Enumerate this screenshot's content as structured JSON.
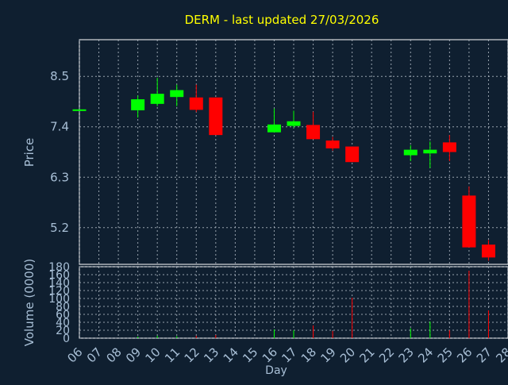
{
  "chart_data": {
    "type": "candlestick",
    "title": "DERM - last updated 27/03/2026",
    "colors": {
      "background": "#0f1f30",
      "plot_frame": "#ffffff",
      "grid": "#b8c2cc",
      "title": "#ffff00",
      "axis_text": "#a8bfd6",
      "up": "#00ff00",
      "down": "#ff0000"
    },
    "x_ticks": [
      "06",
      "07",
      "08",
      "09",
      "10",
      "11",
      "12",
      "13",
      "14",
      "15",
      "16",
      "17",
      "18",
      "19",
      "20",
      "21",
      "22",
      "23",
      "24",
      "25",
      "26",
      "27",
      "28"
    ],
    "xlabel": "Day",
    "price_panel": {
      "ylabel": "Price",
      "yticks": [
        8.5,
        7.4,
        6.3,
        5.2
      ],
      "ylim": [
        4.4,
        9.3
      ],
      "grid": true
    },
    "volume_panel": {
      "ylabel": "Volume (0000)",
      "yticks": [
        0,
        20,
        40,
        60,
        80,
        100,
        120,
        140,
        160,
        180
      ],
      "ylim": [
        0,
        180
      ],
      "grid": true
    },
    "candles": [
      {
        "day": "06",
        "open": 7.75,
        "close": 7.78,
        "high": 7.78,
        "low": 7.75,
        "volume": 0
      },
      {
        "day": "09",
        "open": 7.76,
        "close": 8.0,
        "high": 8.08,
        "low": 7.6,
        "volume": 4
      },
      {
        "day": "10",
        "open": 7.9,
        "close": 8.12,
        "high": 8.47,
        "low": 7.85,
        "volume": 6
      },
      {
        "day": "11",
        "open": 8.05,
        "close": 8.2,
        "high": 8.32,
        "low": 7.85,
        "volume": 5
      },
      {
        "day": "12",
        "open": 8.04,
        "close": 7.77,
        "high": 8.32,
        "low": 7.72,
        "volume": 6
      },
      {
        "day": "13",
        "open": 8.04,
        "close": 7.22,
        "high": 8.04,
        "low": 7.22,
        "volume": 8
      },
      {
        "day": "16",
        "open": 7.28,
        "close": 7.45,
        "high": 7.8,
        "low": 7.28,
        "volume": 22
      },
      {
        "day": "17",
        "open": 7.42,
        "close": 7.52,
        "high": 7.75,
        "low": 7.38,
        "volume": 20
      },
      {
        "day": "18",
        "open": 7.44,
        "close": 7.13,
        "high": 7.73,
        "low": 7.13,
        "volume": 32
      },
      {
        "day": "19",
        "open": 7.1,
        "close": 6.93,
        "high": 7.18,
        "low": 6.88,
        "volume": 18
      },
      {
        "day": "20",
        "open": 6.97,
        "close": 6.63,
        "high": 6.97,
        "low": 6.63,
        "volume": 102
      },
      {
        "day": "23",
        "open": 6.78,
        "close": 6.9,
        "high": 7.0,
        "low": 6.65,
        "volume": 25
      },
      {
        "day": "24",
        "open": 6.82,
        "close": 6.9,
        "high": 7.08,
        "low": 6.5,
        "volume": 42
      },
      {
        "day": "25",
        "open": 7.06,
        "close": 6.85,
        "high": 7.22,
        "low": 6.65,
        "volume": 20
      },
      {
        "day": "26",
        "open": 5.9,
        "close": 4.77,
        "high": 6.1,
        "low": 4.77,
        "volume": 170
      },
      {
        "day": "27",
        "open": 4.83,
        "close": 4.55,
        "high": 4.93,
        "low": 4.48,
        "volume": 70
      }
    ]
  }
}
